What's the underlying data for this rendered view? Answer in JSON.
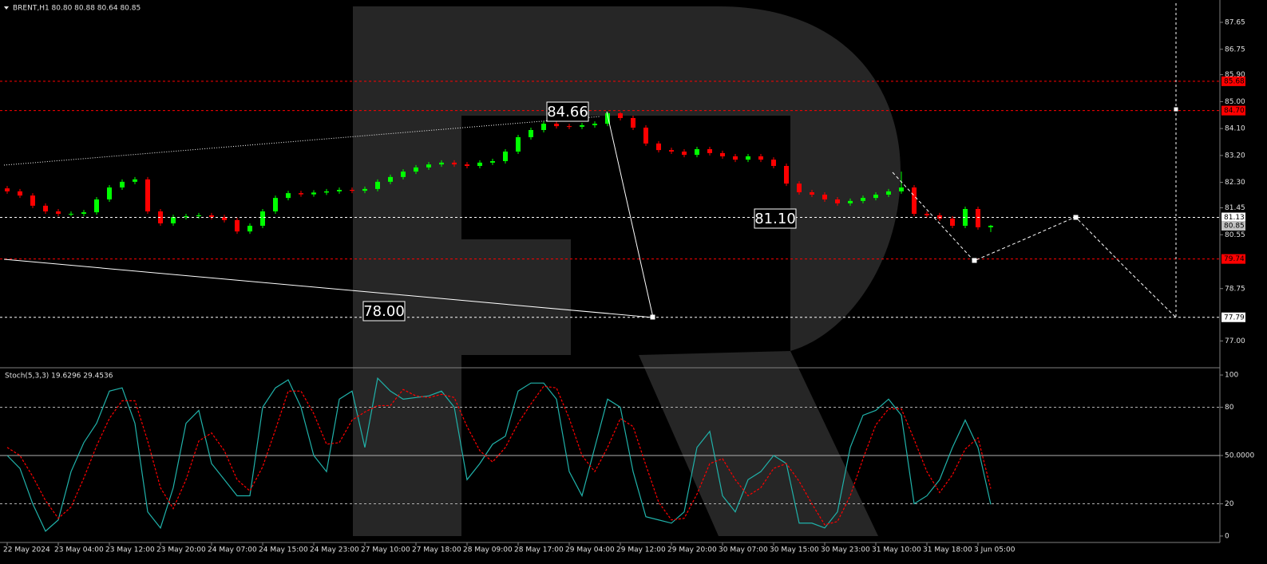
{
  "chart_data": [
    {
      "type": "candlestick",
      "title": "BRENT,H1 80.80 80.88 80.64 80.85",
      "categories": [
        "22 May 2024",
        null,
        null,
        null,
        "23 May 04:00",
        null,
        null,
        null,
        "23 May 12:00",
        null,
        null,
        null,
        "23 May 20:00",
        null,
        null,
        null,
        "24 May 07:00",
        null,
        null,
        null,
        "24 May 15:00",
        null,
        null,
        null,
        "24 May 23:00",
        null,
        null,
        null,
        "27 May 10:00",
        null,
        null,
        null,
        "27 May 18:00",
        null,
        null,
        null,
        "28 May 09:00",
        null,
        null,
        null,
        "28 May 17:00",
        null,
        null,
        null,
        "29 May 04:00",
        null,
        null,
        null,
        "29 May 12:00",
        null,
        null,
        null,
        "29 May 20:00",
        null,
        null,
        null,
        "30 May 07:00",
        null,
        null,
        null,
        "30 May 15:00",
        null,
        null,
        null,
        "30 May 23:00",
        null,
        null,
        null,
        "31 May 10:00",
        null,
        null,
        null,
        "31 May 18:00",
        null,
        null,
        null,
        "3 Jun 05:00",
        null
      ],
      "open": [
        82.1,
        82.0,
        81.86,
        81.52,
        81.33,
        81.25,
        81.25,
        81.3,
        81.73,
        82.13,
        82.32,
        82.4,
        81.33,
        80.93,
        81.14,
        81.17,
        81.2,
        81.14,
        81.04,
        80.66,
        80.85,
        81.33,
        81.78,
        81.94,
        81.9,
        81.96,
        82.0,
        82.05,
        82.02,
        82.08,
        82.32,
        82.48,
        82.66,
        82.8,
        82.9,
        82.96,
        82.9,
        82.85,
        82.96,
        83.01,
        83.33,
        83.81,
        84.05,
        84.26,
        84.18,
        84.16,
        84.21,
        84.26,
        84.61,
        84.45,
        84.13,
        83.6,
        83.38,
        83.33,
        83.22,
        83.41,
        83.28,
        83.17,
        83.06,
        83.17,
        83.06,
        82.85,
        82.26,
        81.97,
        81.89,
        81.73,
        81.6,
        81.68,
        81.78,
        81.89,
        82.0,
        82.13,
        81.25,
        81.2,
        81.09,
        80.85,
        81.41,
        80.8
      ],
      "high": [
        82.18,
        82.08,
        81.94,
        81.6,
        81.41,
        81.33,
        81.38,
        81.81,
        82.21,
        82.4,
        82.48,
        82.48,
        81.41,
        81.22,
        81.25,
        81.28,
        81.28,
        81.22,
        81.12,
        80.93,
        81.41,
        81.86,
        82.02,
        82.02,
        82.04,
        82.08,
        82.13,
        82.13,
        82.16,
        82.4,
        82.56,
        82.74,
        82.88,
        82.98,
        83.04,
        83.04,
        82.98,
        83.04,
        83.09,
        83.41,
        83.89,
        84.13,
        84.34,
        84.34,
        84.26,
        84.29,
        84.34,
        84.66,
        84.65,
        84.53,
        84.21,
        83.68,
        83.46,
        83.41,
        83.49,
        83.49,
        83.36,
        83.25,
        83.25,
        83.25,
        83.14,
        82.93,
        82.34,
        82.05,
        81.97,
        81.81,
        81.76,
        81.86,
        81.97,
        82.08,
        82.66,
        82.21,
        81.33,
        81.28,
        81.17,
        81.49,
        81.49,
        80.88
      ],
      "low": [
        81.92,
        81.78,
        81.44,
        81.25,
        81.17,
        81.17,
        81.17,
        81.22,
        81.65,
        82.05,
        82.24,
        81.25,
        80.85,
        80.85,
        81.06,
        81.09,
        81.06,
        80.96,
        80.58,
        80.58,
        80.77,
        81.25,
        81.7,
        81.82,
        81.82,
        81.88,
        81.92,
        81.94,
        81.94,
        82.0,
        82.24,
        82.4,
        82.58,
        82.72,
        82.82,
        82.82,
        82.77,
        82.77,
        82.88,
        82.93,
        83.25,
        83.73,
        83.97,
        84.1,
        84.08,
        84.08,
        84.13,
        84.18,
        84.37,
        84.05,
        83.52,
        83.3,
        83.25,
        83.14,
        83.14,
        83.2,
        83.09,
        82.98,
        82.98,
        82.98,
        82.77,
        82.18,
        81.89,
        81.81,
        81.65,
        81.52,
        81.52,
        81.6,
        81.7,
        81.81,
        81.92,
        81.17,
        81.12,
        81.01,
        80.77,
        80.77,
        80.72,
        80.64
      ],
      "close": [
        82.0,
        81.86,
        81.52,
        81.33,
        81.25,
        81.25,
        81.3,
        81.73,
        82.13,
        82.32,
        82.4,
        81.33,
        80.93,
        81.14,
        81.17,
        81.2,
        81.14,
        81.04,
        80.66,
        80.85,
        81.33,
        81.78,
        81.94,
        81.9,
        81.96,
        82.0,
        82.05,
        82.02,
        82.08,
        82.32,
        82.48,
        82.66,
        82.8,
        82.9,
        82.96,
        82.9,
        82.85,
        82.96,
        83.01,
        83.33,
        83.81,
        84.05,
        84.26,
        84.18,
        84.16,
        84.21,
        84.26,
        84.61,
        84.45,
        84.13,
        83.6,
        83.38,
        83.33,
        83.22,
        83.41,
        83.28,
        83.17,
        83.06,
        83.17,
        83.06,
        82.85,
        82.26,
        81.97,
        81.89,
        81.73,
        81.6,
        81.68,
        81.78,
        81.89,
        82.0,
        82.13,
        81.25,
        81.2,
        81.09,
        80.85,
        81.41,
        80.8,
        80.85
      ],
      "up_color": "#00ff00",
      "down_color": "#ff0000",
      "ylim": [
        76.13,
        88.29
      ],
      "yticks": [
        87.65,
        86.75,
        {
          "value": 85.9,
          "label": "85.90"
        },
        {
          "value": 85,
          "label": "85.00"
        },
        {
          "value": 84.1,
          "label": "84.10"
        },
        {
          "value": 83.2,
          "label": "83.20"
        },
        {
          "value": 82.3,
          "label": "82.30"
        },
        81.45,
        80.55,
        78.75,
        {
          "value": 77,
          "label": "77.00"
        }
      ],
      "levels": [
        {
          "value": 85.68,
          "label": "85.68",
          "color": "#ff0000",
          "style": "dashed"
        },
        {
          "value": 84.7,
          "label": "84.70",
          "color": "#ff0000",
          "style": "dashed"
        },
        {
          "value": 81.13,
          "label": "81.13",
          "color": "#ffffff",
          "style": "dashed"
        },
        {
          "value": 80.85,
          "label": "80.85",
          "color": "#c0c0c0",
          "style": "none"
        },
        {
          "value": 79.74,
          "label": "79.74",
          "color": "#ff0000",
          "style": "dashed"
        },
        {
          "value": 77.79,
          "label": "77.79",
          "color": "#ffffff",
          "style": "dashed"
        }
      ],
      "annotations": [
        "84.66",
        "81.10",
        "78.00"
      ]
    },
    {
      "type": "line",
      "title": "Stoch(5,3,3) 19.6296 29.4536",
      "series": [
        {
          "name": "Main",
          "color": "#20b2aa",
          "style": "solid",
          "values": [
            50,
            42,
            20,
            3,
            10,
            40,
            58,
            70,
            90,
            92,
            70,
            15,
            5,
            30,
            70,
            78,
            45,
            35,
            25,
            25,
            80,
            92,
            97,
            80,
            50,
            40,
            85,
            90,
            55,
            98,
            90,
            85,
            86,
            87,
            90,
            80,
            35,
            45,
            57,
            62,
            90,
            95,
            95,
            85,
            40,
            25,
            55,
            85,
            80,
            40,
            12,
            10,
            8,
            15,
            55,
            65,
            25,
            15,
            35,
            40,
            50,
            45,
            8,
            8,
            5,
            15,
            55,
            75,
            78,
            85,
            75,
            20,
            25,
            35,
            55,
            72,
            55,
            19.6296
          ]
        },
        {
          "name": "Signal",
          "color": "#ff0000",
          "style": "dashed",
          "values": [
            55,
            50,
            37,
            22,
            11,
            18,
            36,
            56,
            73,
            84,
            84,
            59,
            30,
            17,
            35,
            59,
            64,
            53,
            35,
            28,
            43,
            66,
            90,
            90,
            76,
            57,
            58,
            72,
            77,
            81,
            81,
            91,
            87,
            86,
            88,
            86,
            68,
            53,
            46,
            55,
            70,
            82,
            93,
            92,
            73,
            50,
            40,
            55,
            73,
            68,
            44,
            21,
            10,
            11,
            26,
            45,
            48,
            35,
            25,
            30,
            42,
            45,
            34,
            20,
            7,
            9,
            25,
            48,
            69,
            79,
            79,
            60,
            40,
            27,
            38,
            54,
            61,
            29.4536
          ]
        }
      ],
      "ylim": [
        -4,
        104
      ],
      "yticks": [
        100,
        80,
        {
          "value": 50,
          "label": "50.0000"
        },
        20,
        0
      ],
      "levels": [
        {
          "value": 80,
          "style": "dashed"
        },
        {
          "value": 50,
          "style": "solid"
        },
        {
          "value": 20,
          "style": "dashed"
        }
      ]
    }
  ]
}
